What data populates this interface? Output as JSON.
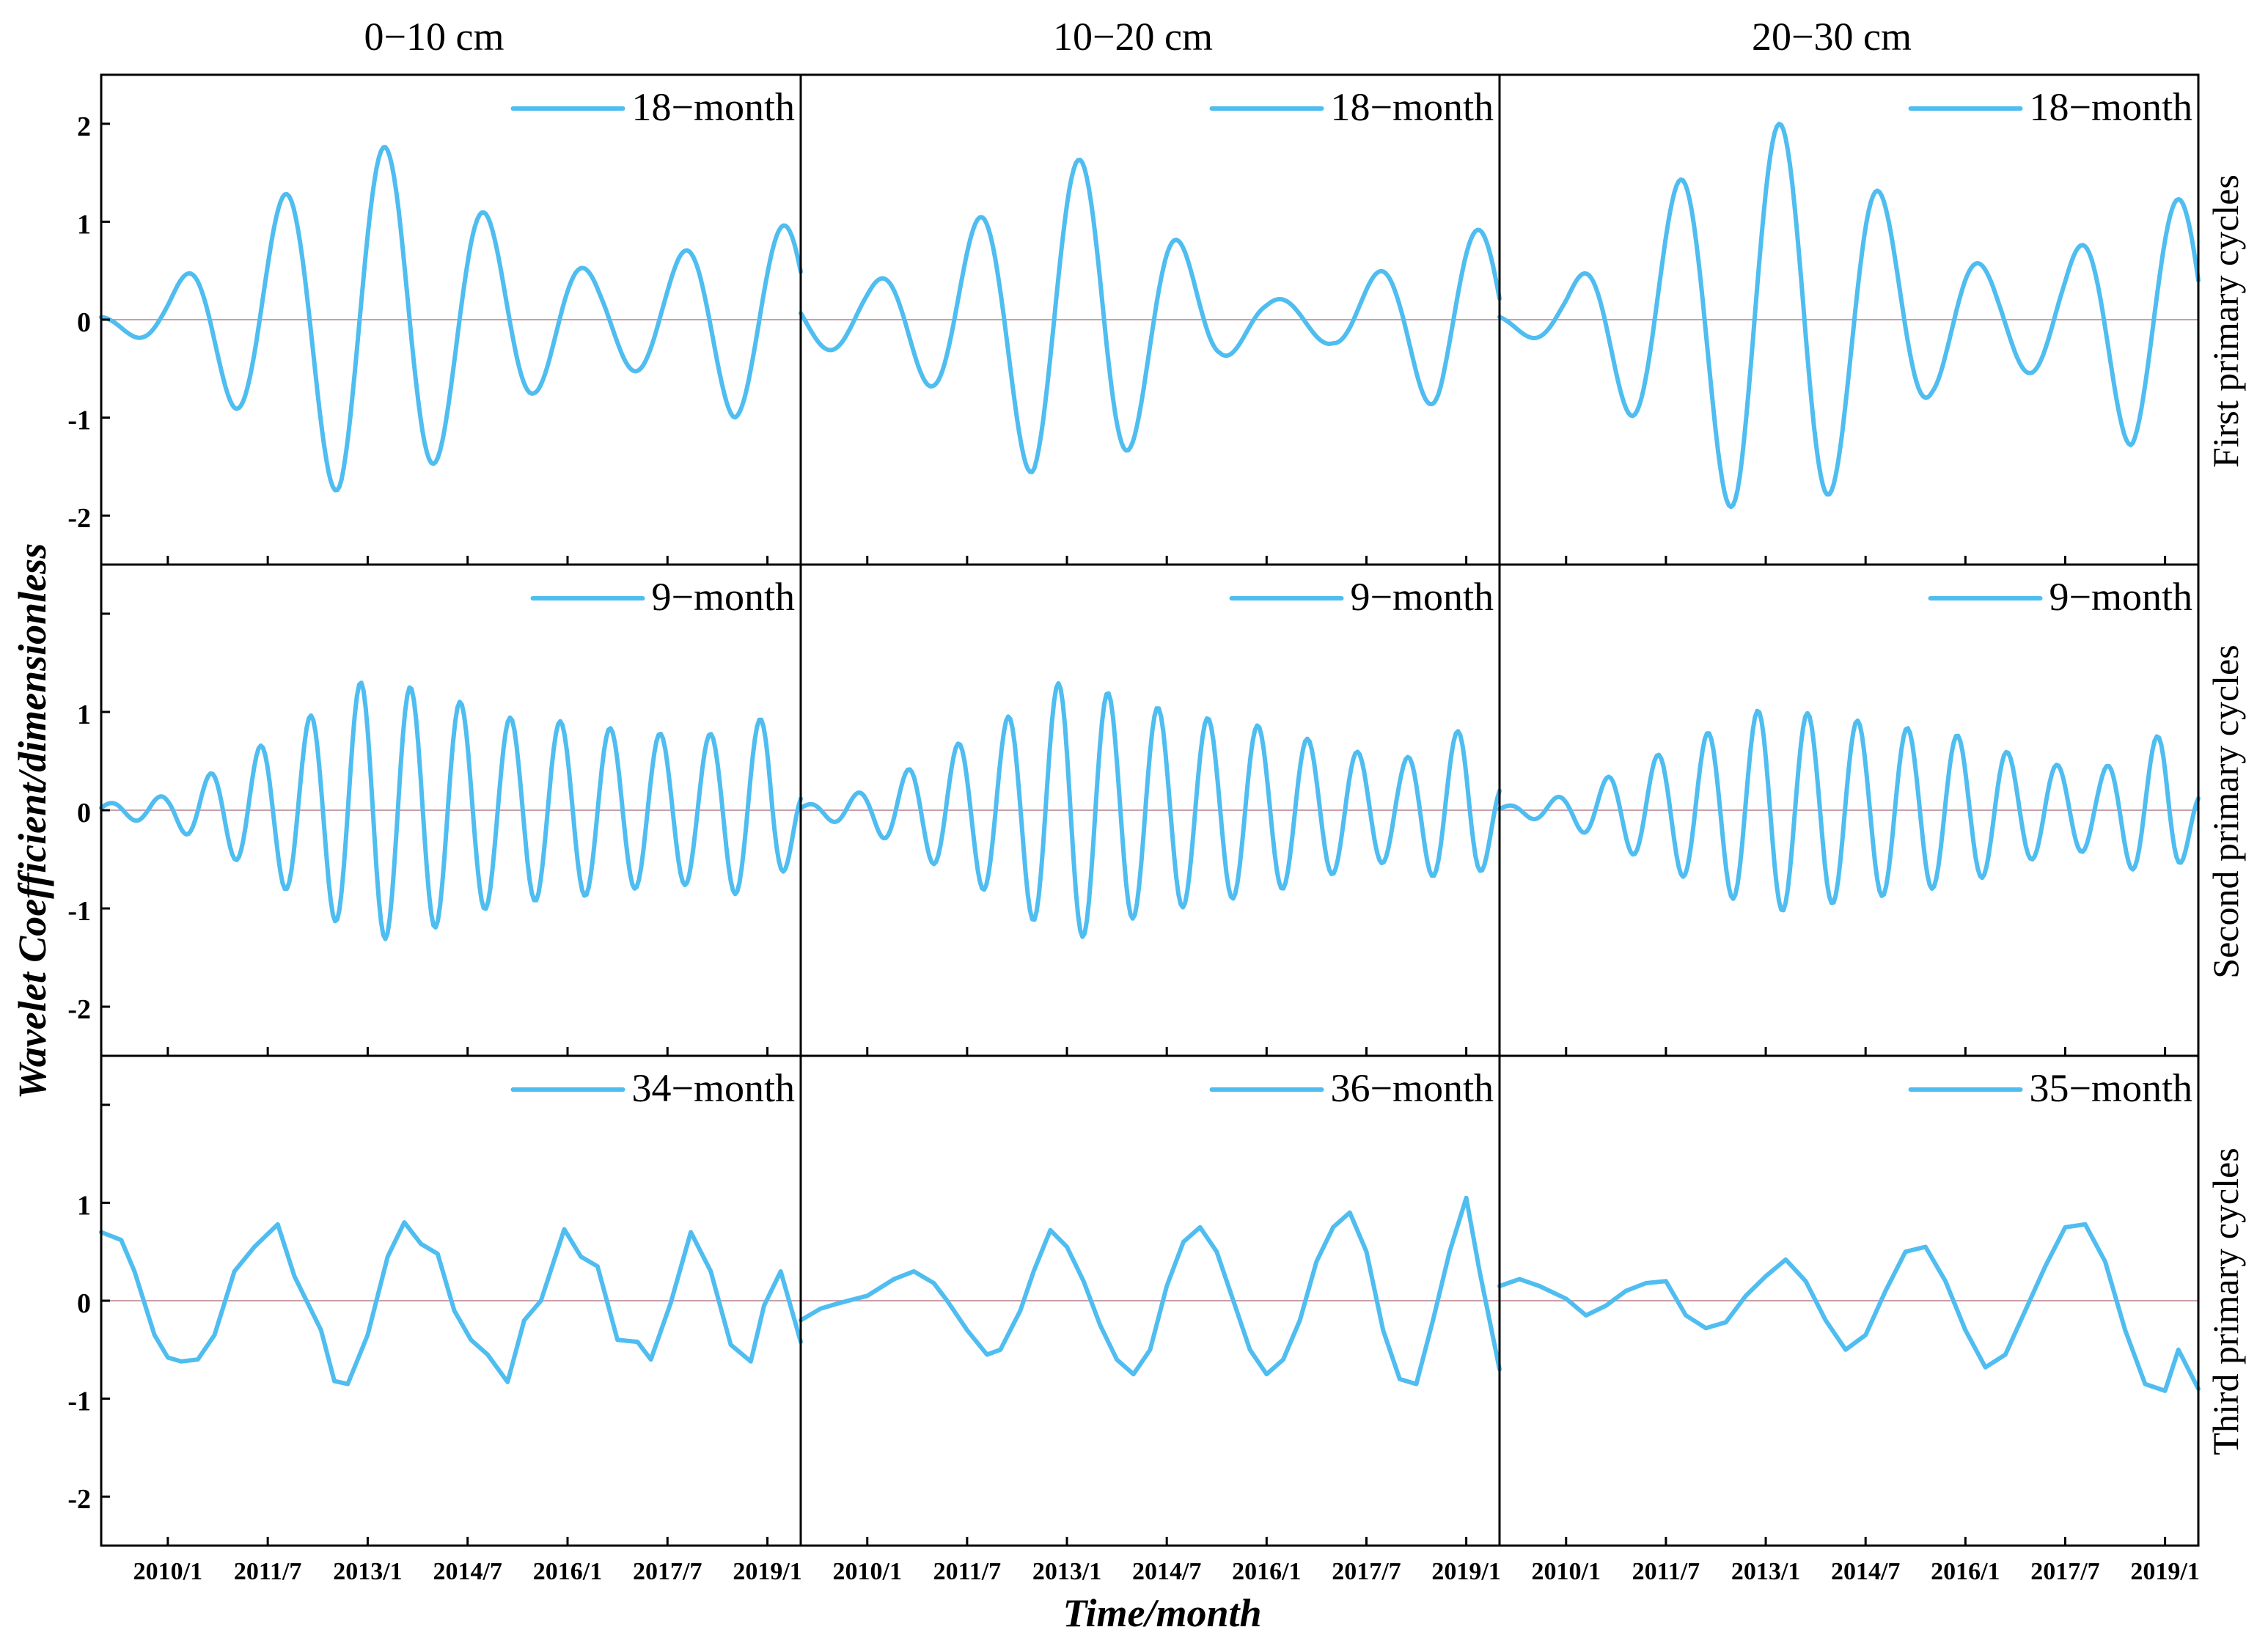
{
  "figure": {
    "y_axis_label": "Wavelet Coefficient/dimensionless",
    "x_axis_label": "Time/month"
  },
  "colors": {
    "line": "#4FBDF0",
    "zero_line": "#C8A0A8",
    "frame": "#000000",
    "background": "#ffffff"
  },
  "chart_data": {
    "type": "line",
    "layout": "3x3 small multiples, shared axes",
    "column_titles": [
      "0−10 cm",
      "10−20 cm",
      "20−30 cm"
    ],
    "row_titles": [
      "First primary cycles",
      "Second primary cycles",
      "Third primary cycles"
    ],
    "x_range": [
      2009.0,
      2019.5
    ],
    "x_ticks": [
      2010.0,
      2011.5,
      2013.0,
      2014.5,
      2016.0,
      2017.5,
      2019.0
    ],
    "x_tick_labels": [
      "2010/1",
      "2011/7",
      "2013/1",
      "2014/7",
      "2016/1",
      "2017/7",
      "2019/1"
    ],
    "y_range": [
      -2.5,
      2.5
    ],
    "y_ticks": [
      -2,
      -1,
      0,
      1,
      2
    ],
    "y_tick_labels": [
      "-2",
      "-1",
      "0",
      "1",
      "2"
    ],
    "series": [
      {
        "row": 0,
        "col": 0,
        "legend": "18−month",
        "period_months": 18,
        "phase": 2.6,
        "envelope_x": [
          2009.0,
          2010.0,
          2011.0,
          2012.0,
          2012.6,
          2013.5,
          2014.3,
          2015.5,
          2016.5,
          2017.5,
          2018.5,
          2019.5
        ],
        "envelope_y": [
          0.05,
          0.3,
          0.9,
          1.4,
          1.8,
          1.75,
          1.3,
          0.75,
          0.45,
          0.6,
          1.0,
          0.95
        ]
      },
      {
        "row": 0,
        "col": 1,
        "legend": "18−month",
        "period_months": 18,
        "phase": 2.9,
        "envelope_x": [
          2009.0,
          2010.0,
          2011.0,
          2012.0,
          2012.5,
          2013.5,
          2014.3,
          2015.3,
          2016.0,
          2017.0,
          2018.0,
          2018.6,
          2019.5
        ],
        "envelope_y": [
          0.28,
          0.35,
          0.7,
          1.2,
          1.6,
          1.65,
          1.05,
          0.4,
          0.2,
          0.25,
          0.6,
          0.95,
          0.9
        ]
      },
      {
        "row": 0,
        "col": 2,
        "legend": "18−month",
        "period_months": 18,
        "phase": 2.8,
        "envelope_x": [
          2009.0,
          2010.0,
          2011.0,
          2012.0,
          2012.6,
          2013.6,
          2014.5,
          2015.5,
          2016.5,
          2017.5,
          2018.5,
          2019.5
        ],
        "envelope_y": [
          0.08,
          0.3,
          1.0,
          1.6,
          2.0,
          2.0,
          1.45,
          0.75,
          0.5,
          0.6,
          1.3,
          1.2
        ]
      },
      {
        "row": 1,
        "col": 0,
        "legend": "9−month",
        "period_months": 9,
        "phase": 0.4,
        "envelope_x": [
          2009.0,
          2010.0,
          2011.0,
          2012.0,
          2013.0,
          2014.0,
          2015.0,
          2016.0,
          2017.0,
          2018.0,
          2019.0,
          2019.5
        ],
        "envelope_y": [
          0.06,
          0.15,
          0.5,
          0.9,
          1.35,
          1.2,
          0.95,
          0.9,
          0.8,
          0.75,
          0.95,
          0.3
        ]
      },
      {
        "row": 1,
        "col": 1,
        "legend": "9−month",
        "period_months": 9,
        "phase": 0.6,
        "envelope_x": [
          2009.0,
          2010.0,
          2011.0,
          2012.0,
          2013.0,
          2014.0,
          2015.0,
          2016.0,
          2017.0,
          2018.0,
          2019.0,
          2019.5
        ],
        "envelope_y": [
          0.04,
          0.2,
          0.55,
          0.9,
          1.35,
          1.1,
          0.95,
          0.85,
          0.65,
          0.5,
          0.85,
          0.35
        ]
      },
      {
        "row": 1,
        "col": 2,
        "legend": "9−month",
        "period_months": 9,
        "phase": 0.5,
        "envelope_x": [
          2009.0,
          2010.0,
          2011.0,
          2012.0,
          2013.0,
          2014.0,
          2015.0,
          2016.0,
          2017.0,
          2018.0,
          2019.0,
          2019.5
        ],
        "envelope_y": [
          0.03,
          0.15,
          0.45,
          0.75,
          1.05,
          0.95,
          0.85,
          0.75,
          0.5,
          0.4,
          0.8,
          0.25
        ]
      },
      {
        "row": 2,
        "col": 0,
        "legend": "34−month",
        "x": [
          2009.0,
          2009.3,
          2009.5,
          2009.8,
          2010.0,
          2010.2,
          2010.45,
          2010.7,
          2011.0,
          2011.3,
          2011.65,
          2011.9,
          2012.3,
          2012.5,
          2012.7,
          2013.0,
          2013.3,
          2013.55,
          2013.8,
          2014.05,
          2014.3,
          2014.55,
          2014.8,
          2015.1,
          2015.35,
          2015.6,
          2015.95,
          2016.2,
          2016.45,
          2016.75,
          2017.05,
          2017.25,
          2017.55,
          2017.85,
          2018.15,
          2018.45,
          2018.75,
          2018.95,
          2019.2,
          2019.5
        ],
        "y": [
          0.7,
          0.62,
          0.3,
          -0.35,
          -0.58,
          -0.62,
          -0.6,
          -0.35,
          0.3,
          0.55,
          0.78,
          0.25,
          -0.3,
          -0.82,
          -0.85,
          -0.35,
          0.45,
          0.8,
          0.58,
          0.48,
          -0.1,
          -0.4,
          -0.55,
          -0.83,
          -0.2,
          0.0,
          0.73,
          0.45,
          0.35,
          -0.4,
          -0.42,
          -0.6,
          -0.02,
          0.7,
          0.3,
          -0.45,
          -0.62,
          -0.05,
          0.3,
          -0.42
        ]
      },
      {
        "row": 2,
        "col": 1,
        "legend": "36−month",
        "x": [
          2009.0,
          2009.3,
          2009.6,
          2010.0,
          2010.4,
          2010.7,
          2011.0,
          2011.2,
          2011.5,
          2011.8,
          2012.0,
          2012.3,
          2012.5,
          2012.75,
          2013.0,
          2013.25,
          2013.5,
          2013.75,
          2014.0,
          2014.25,
          2014.5,
          2014.75,
          2015.0,
          2015.25,
          2015.5,
          2015.75,
          2016.0,
          2016.25,
          2016.5,
          2016.75,
          2017.0,
          2017.25,
          2017.5,
          2017.75,
          2018.0,
          2018.25,
          2018.5,
          2018.75,
          2019.0,
          2019.2,
          2019.5
        ],
        "y": [
          -0.2,
          -0.08,
          -0.02,
          0.05,
          0.22,
          0.3,
          0.18,
          0.0,
          -0.3,
          -0.55,
          -0.5,
          -0.1,
          0.3,
          0.72,
          0.55,
          0.2,
          -0.25,
          -0.6,
          -0.75,
          -0.5,
          0.15,
          0.6,
          0.75,
          0.5,
          0.0,
          -0.5,
          -0.75,
          -0.6,
          -0.2,
          0.4,
          0.75,
          0.9,
          0.5,
          -0.3,
          -0.8,
          -0.85,
          -0.2,
          0.5,
          1.05,
          0.3,
          -0.7
        ]
      },
      {
        "row": 2,
        "col": 2,
        "legend": "35−month",
        "x": [
          2009.0,
          2009.3,
          2009.6,
          2010.0,
          2010.3,
          2010.6,
          2010.9,
          2011.2,
          2011.5,
          2011.8,
          2012.1,
          2012.4,
          2012.7,
          2013.0,
          2013.3,
          2013.6,
          2013.9,
          2014.2,
          2014.5,
          2014.8,
          2015.1,
          2015.4,
          2015.7,
          2016.0,
          2016.3,
          2016.6,
          2016.9,
          2017.2,
          2017.5,
          2017.8,
          2018.1,
          2018.4,
          2018.7,
          2019.0,
          2019.2,
          2019.5
        ],
        "y": [
          0.15,
          0.22,
          0.15,
          0.02,
          -0.15,
          -0.05,
          0.1,
          0.18,
          0.2,
          -0.15,
          -0.28,
          -0.22,
          0.05,
          0.25,
          0.42,
          0.2,
          -0.2,
          -0.5,
          -0.35,
          0.1,
          0.5,
          0.55,
          0.2,
          -0.3,
          -0.68,
          -0.55,
          -0.1,
          0.35,
          0.75,
          0.78,
          0.4,
          -0.3,
          -0.85,
          -0.92,
          -0.5,
          -0.9
        ]
      }
    ]
  }
}
